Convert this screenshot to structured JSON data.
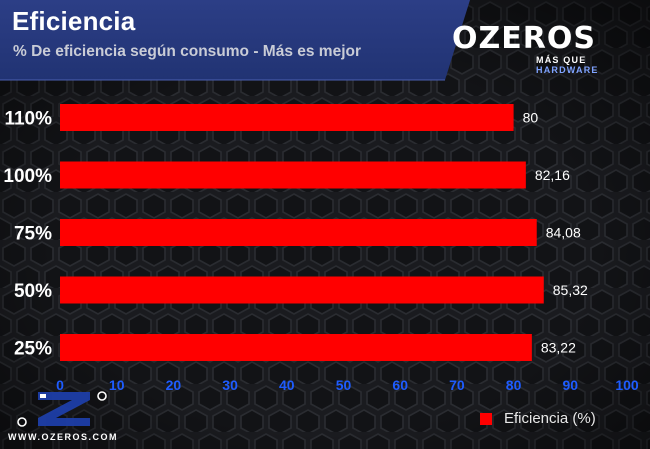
{
  "header": {
    "title": "Eficiencia",
    "subtitle": "% De eficiencia según consumo - Más es mejor"
  },
  "logo": {
    "main": "OZEROS",
    "tagline_left": "MÁS QUE ",
    "tagline_right": "HARDWARE",
    "watermark_url": "WWW.OZEROS.COM"
  },
  "colors": {
    "bar": "#ff0000",
    "background": "#1b1c20",
    "header": "#273a80",
    "accent_blue": "#1e3ea8"
  },
  "chart_data": {
    "type": "bar",
    "orientation": "horizontal",
    "title": "Eficiencia",
    "subtitle": "% De eficiencia según consumo - Más es mejor",
    "categories": [
      "110%",
      "100%",
      "75%",
      "50%",
      "25%"
    ],
    "series": [
      {
        "name": "Eficiencia (%)",
        "values": [
          80,
          82.16,
          84.08,
          85.32,
          83.22
        ],
        "value_labels": [
          "80",
          "82,16",
          "84,08",
          "85,32",
          "83,22"
        ],
        "color": "#ff0000"
      }
    ],
    "xlim": [
      0,
      100
    ],
    "x_ticks": [
      "0",
      "10",
      "20",
      "30",
      "40",
      "50",
      "60",
      "70",
      "80",
      "90",
      "100"
    ],
    "grid": false,
    "legend": "bottom-right"
  }
}
